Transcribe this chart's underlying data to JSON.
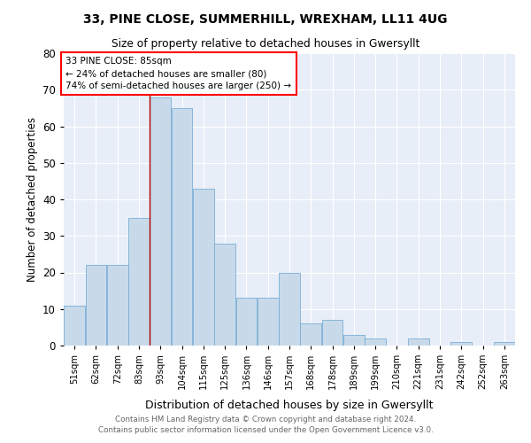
{
  "title1": "33, PINE CLOSE, SUMMERHILL, WREXHAM, LL11 4UG",
  "title2": "Size of property relative to detached houses in Gwersyllt",
  "xlabel": "Distribution of detached houses by size in Gwersyllt",
  "ylabel": "Number of detached properties",
  "bin_labels": [
    "51sqm",
    "62sqm",
    "72sqm",
    "83sqm",
    "93sqm",
    "104sqm",
    "115sqm",
    "125sqm",
    "136sqm",
    "146sqm",
    "157sqm",
    "168sqm",
    "178sqm",
    "189sqm",
    "199sqm",
    "210sqm",
    "221sqm",
    "231sqm",
    "242sqm",
    "252sqm",
    "263sqm"
  ],
  "values": [
    11,
    22,
    22,
    35,
    68,
    65,
    43,
    28,
    13,
    13,
    20,
    6,
    7,
    3,
    2,
    0,
    2,
    0,
    1,
    0,
    1
  ],
  "bar_color": "#c8daea",
  "bar_edge_color": "#7aaed6",
  "red_line_index": 3.5,
  "annotation_line1": "33 PINE CLOSE: 85sqm",
  "annotation_line2": "← 24% of detached houses are smaller (80)",
  "annotation_line3": "74% of semi-detached houses are larger (250) →",
  "footnote1": "Contains HM Land Registry data © Crown copyright and database right 2024.",
  "footnote2": "Contains public sector information licensed under the Open Government Licence v3.0.",
  "ylim": [
    0,
    80
  ],
  "yticks": [
    0,
    10,
    20,
    30,
    40,
    50,
    60,
    70,
    80
  ],
  "plot_bg_color": "#e8eef8"
}
